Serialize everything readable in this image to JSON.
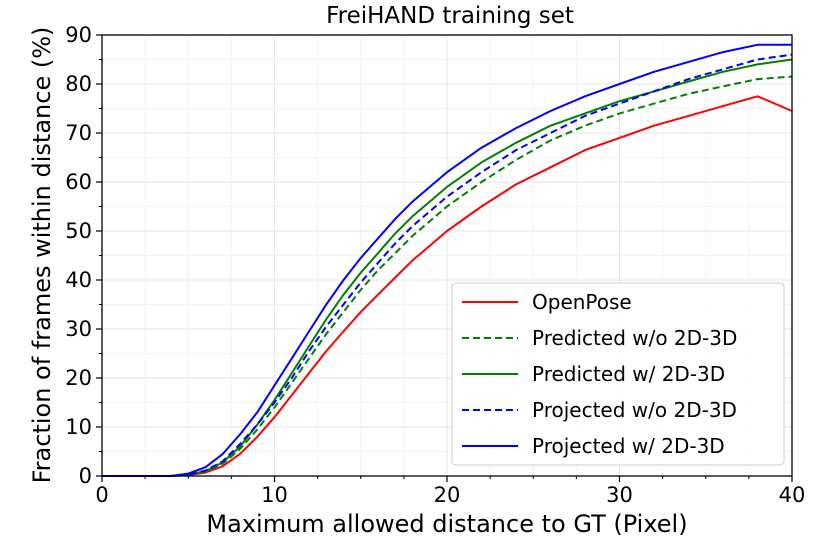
{
  "chart_data": {
    "type": "line",
    "title": "FreiHAND training set",
    "xlabel": "Maximum allowed distance to GT (Pixel)",
    "ylabel": "Fraction of frames within distance (%)",
    "xlim": [
      0,
      40
    ],
    "ylim": [
      0,
      90
    ],
    "xticks": [
      "0",
      "10",
      "20",
      "30",
      "40"
    ],
    "yticks": [
      "0",
      "10",
      "20",
      "30",
      "40",
      "50",
      "60",
      "70",
      "80",
      "90"
    ],
    "grid": true,
    "legend_position": "lower-right",
    "x": [
      0,
      4,
      5,
      6,
      7,
      8,
      9,
      10,
      11,
      12,
      13,
      14,
      15,
      16,
      17,
      18,
      19,
      20,
      22,
      24,
      26,
      28,
      30,
      32,
      34,
      36,
      38,
      40
    ],
    "series": [
      {
        "name": "OpenPose",
        "color": "#ff0000",
        "style": "solid",
        "values": [
          0,
          0,
          0.2,
          0.7,
          2.0,
          4.5,
          8.0,
          12.0,
          16.5,
          21.0,
          25.5,
          29.5,
          33.5,
          37.0,
          40.5,
          44.0,
          47.0,
          50.0,
          55.0,
          59.5,
          63.0,
          66.5,
          69.0,
          71.5,
          73.5,
          75.5,
          77.5,
          74.5
        ]
      },
      {
        "name": "Predicted w/o 2D-3D",
        "color": "#008000",
        "style": "dashed",
        "values": [
          0,
          0,
          0.3,
          0.9,
          2.5,
          5.5,
          9.5,
          14.0,
          19.0,
          24.0,
          29.0,
          33.5,
          38.0,
          42.0,
          45.5,
          49.0,
          52.0,
          55.0,
          60.0,
          64.5,
          68.5,
          71.5,
          74.0,
          76.0,
          78.0,
          79.5,
          81.0,
          81.5
        ]
      },
      {
        "name": "Predicted w/ 2D-3D",
        "color": "#008000",
        "style": "solid",
        "values": [
          0,
          0,
          0.3,
          1.0,
          2.8,
          6.0,
          10.5,
          15.5,
          21.0,
          26.5,
          32.0,
          37.0,
          41.5,
          45.5,
          49.5,
          53.0,
          56.0,
          59.0,
          64.0,
          68.0,
          71.5,
          74.0,
          76.5,
          78.5,
          80.5,
          82.5,
          84.0,
          85.0
        ]
      },
      {
        "name": "Projected w/o 2D-3D",
        "color": "#0000ff",
        "style": "dashed",
        "values": [
          0,
          0,
          0.3,
          1.1,
          3.0,
          6.5,
          10.5,
          15.0,
          20.0,
          25.5,
          30.5,
          35.0,
          39.5,
          43.5,
          47.5,
          51.0,
          54.0,
          57.0,
          62.0,
          66.5,
          70.0,
          73.5,
          76.0,
          78.5,
          81.0,
          83.0,
          85.0,
          86.0
        ]
      },
      {
        "name": "Projected w/ 2D-3D",
        "color": "#0000ff",
        "style": "solid",
        "values": [
          0,
          0,
          0.5,
          1.8,
          4.5,
          8.5,
          13.0,
          18.5,
          24.0,
          29.5,
          35.0,
          40.0,
          44.5,
          48.5,
          52.5,
          56.0,
          59.0,
          62.0,
          67.0,
          71.0,
          74.5,
          77.5,
          80.0,
          82.5,
          84.5,
          86.5,
          88.0,
          88.0
        ]
      }
    ]
  }
}
